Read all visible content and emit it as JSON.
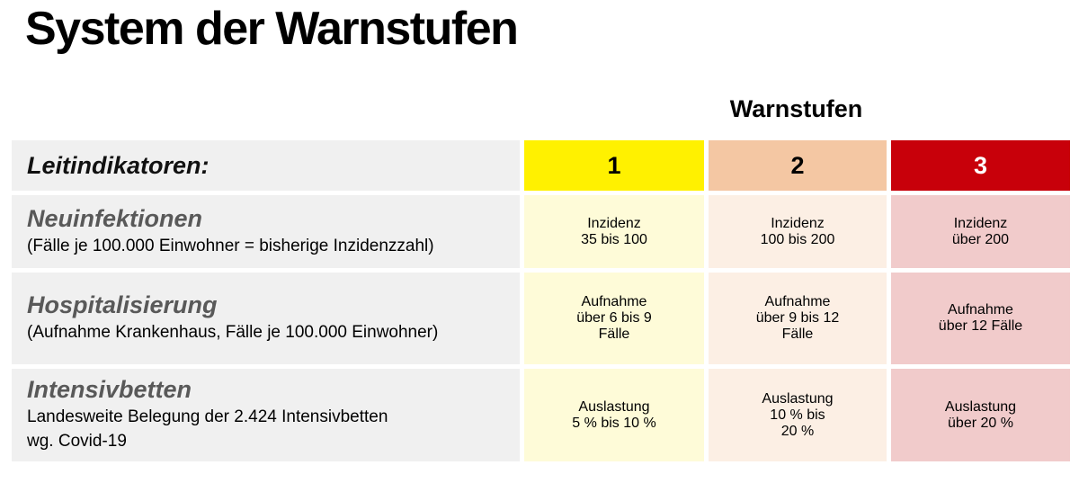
{
  "title": "System der Warnstufen",
  "table": {
    "header_label": "Warnstufen",
    "corner_label": "Leitindikatoren:",
    "levels": [
      {
        "label": "1",
        "bg": "#FFF100",
        "fg": "#000000",
        "cell_bg": "#FEFBD8"
      },
      {
        "label": "2",
        "bg": "#F4C7A3",
        "fg": "#000000",
        "cell_bg": "#FCEFE4"
      },
      {
        "label": "3",
        "bg": "#C8000A",
        "fg": "#FFFFFF",
        "cell_bg": "#F1CBCB"
      }
    ],
    "rows": [
      {
        "indicator": "Neuinfektionen",
        "description": "(Fälle je 100.000 Einwohner =  bisherige Inzidenzzahl)",
        "cells": [
          {
            "text": "Inzidenz\n35 bis 100"
          },
          {
            "text": "Inzidenz\n100 bis 200"
          },
          {
            "text": "Inzidenz\nüber 200"
          }
        ]
      },
      {
        "indicator": "Hospitalisierung",
        "description": "(Aufnahme Krankenhaus, Fälle je 100.000 Einwohner)",
        "cells": [
          {
            "text": "Aufnahme\nüber 6 bis 9\nFälle"
          },
          {
            "text": "Aufnahme\nüber 9 bis 12\nFälle"
          },
          {
            "text": "Aufnahme\nüber 12 Fälle"
          }
        ]
      },
      {
        "indicator": "Intensivbetten",
        "description": "Landesweite Belegung der 2.424 Intensivbetten\nwg. Covid-19",
        "cells": [
          {
            "text": "Auslastung\n5 % bis 10 %"
          },
          {
            "text": "Auslastung\n10 % bis\n20 %"
          },
          {
            "text": "Auslastung\nüber 20 %"
          }
        ]
      }
    ]
  },
  "colors": {
    "background": "#FFFFFF",
    "label_column_bg": "#F0F0F0",
    "indicator_heading": "#595959",
    "title_text": "#000000"
  }
}
